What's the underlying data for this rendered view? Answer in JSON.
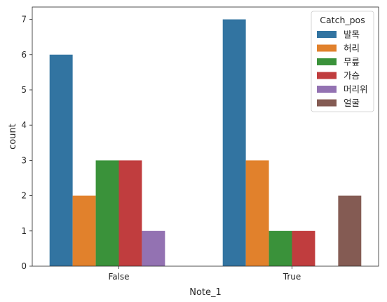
{
  "chart_data": {
    "type": "bar",
    "title": "",
    "xlabel": "Note_1",
    "ylabel": "count",
    "categories": [
      "False",
      "True"
    ],
    "ylim": [
      0,
      7.35
    ],
    "yticks": [
      0,
      1,
      2,
      3,
      4,
      5,
      6,
      7
    ],
    "grid": false,
    "legend": {
      "title": "Catch_pos",
      "placement": "top-right"
    },
    "series": [
      {
        "name": "발목",
        "color": "#3274a1",
        "values": [
          6,
          7
        ]
      },
      {
        "name": "허리",
        "color": "#e1812c",
        "values": [
          2,
          3
        ]
      },
      {
        "name": "무릎",
        "color": "#3a923a",
        "values": [
          3,
          1
        ]
      },
      {
        "name": "가슴",
        "color": "#c03d3e",
        "values": [
          3,
          1
        ]
      },
      {
        "name": "머리위",
        "color": "#9372b2",
        "values": [
          1,
          0
        ]
      },
      {
        "name": "얼굴",
        "color": "#845b53",
        "values": [
          0,
          2
        ]
      }
    ]
  }
}
